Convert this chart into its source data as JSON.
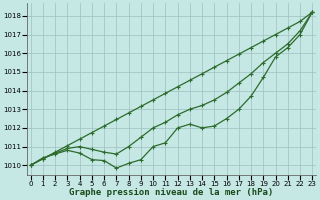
{
  "xlabel": "Graphe pression niveau de la mer (hPa)",
  "background_color": "#c5e8e5",
  "grid_color": "#9dbfbd",
  "line_color": "#2d6b2d",
  "x_ticks": [
    0,
    1,
    2,
    3,
    4,
    5,
    6,
    7,
    8,
    9,
    10,
    11,
    12,
    13,
    14,
    15,
    16,
    17,
    18,
    19,
    20,
    21,
    22,
    23
  ],
  "ylim": [
    1009.5,
    1018.7
  ],
  "xlim": [
    -0.3,
    23.3
  ],
  "yticks": [
    1010,
    1011,
    1012,
    1013,
    1014,
    1015,
    1016,
    1017,
    1018
  ],
  "series1": [
    1010.0,
    1010.35,
    1010.7,
    1011.05,
    1011.4,
    1011.75,
    1012.1,
    1012.45,
    1012.8,
    1013.15,
    1013.5,
    1013.85,
    1014.2,
    1014.55,
    1014.9,
    1015.25,
    1015.6,
    1015.95,
    1016.3,
    1016.65,
    1017.0,
    1017.35,
    1017.7,
    1018.2
  ],
  "series2": [
    1010.0,
    1010.35,
    1010.65,
    1010.9,
    1011.0,
    1010.85,
    1010.7,
    1010.6,
    1011.0,
    1011.5,
    1012.0,
    1012.3,
    1012.7,
    1013.0,
    1013.2,
    1013.5,
    1013.9,
    1014.4,
    1014.9,
    1015.5,
    1016.0,
    1016.5,
    1017.2,
    1018.2
  ],
  "series3": [
    1010.0,
    1010.4,
    1010.6,
    1010.8,
    1010.65,
    1010.3,
    1010.25,
    1009.85,
    1010.1,
    1010.3,
    1011.0,
    1011.2,
    1012.0,
    1012.2,
    1012.0,
    1012.1,
    1012.5,
    1013.0,
    1013.7,
    1014.7,
    1015.8,
    1016.3,
    1017.0,
    1018.2
  ],
  "marker": "+",
  "marker_size": 3.5,
  "line_width": 0.9,
  "tick_fontsize": 5.0,
  "xlabel_fontsize": 6.5
}
